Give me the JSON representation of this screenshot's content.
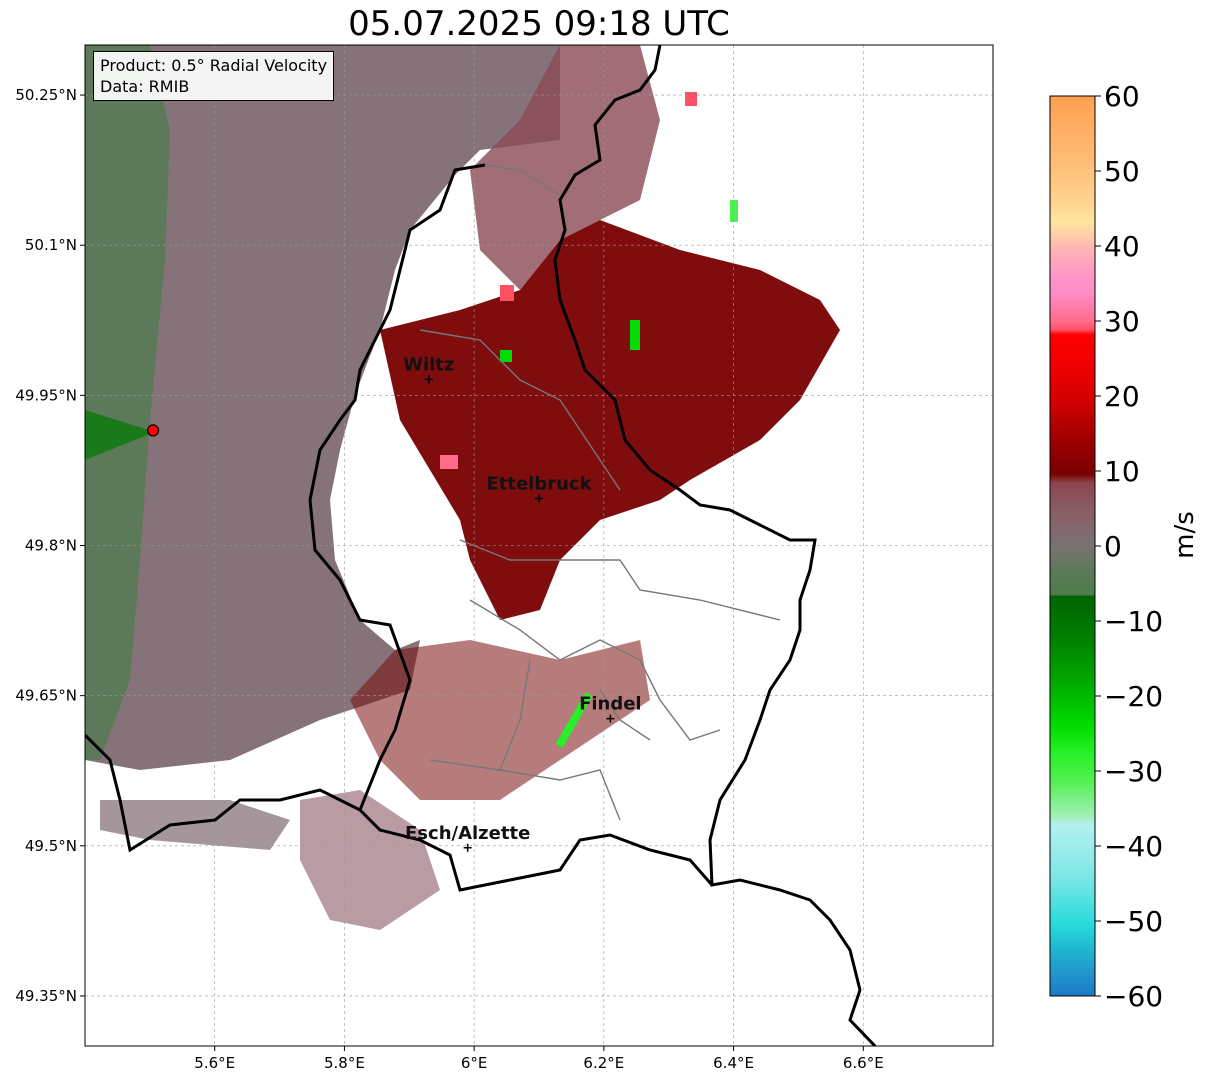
{
  "title": "05.07.2025 09:18 UTC",
  "info": {
    "product": "Product: 0.5° Radial Velocity",
    "source": "Data: RMIB"
  },
  "map": {
    "lon_range": [
      5.4,
      6.8
    ],
    "lat_range": [
      49.3,
      50.3
    ],
    "lon_ticks": [
      "5.6°E",
      "5.8°E",
      "6°E",
      "6.2°E",
      "6.4°E",
      "6.6°E"
    ],
    "lat_ticks": [
      "50.25°N",
      "50.1°N",
      "49.95°N",
      "49.8°N",
      "49.65°N",
      "49.5°N",
      "49.35°N"
    ],
    "grid": true,
    "radar_site": {
      "lon": 5.505,
      "lat": 49.915
    },
    "cities": [
      {
        "name": "Wiltz",
        "lon": 5.93,
        "lat": 49.966
      },
      {
        "name": "Ettelbruck",
        "lon": 6.1,
        "lat": 49.847
      },
      {
        "name": "Findel",
        "lon": 6.21,
        "lat": 49.627
      },
      {
        "name": "Esch/Alzette",
        "lon": 5.99,
        "lat": 49.498
      }
    ]
  },
  "colorbar": {
    "label": "m/s",
    "min": -60,
    "max": 60,
    "ticks": [
      "60",
      "50",
      "40",
      "30",
      "20",
      "10",
      "0",
      "−10",
      "−20",
      "−30",
      "−40",
      "−50",
      "−60"
    ],
    "colors": {
      "orange": "#ffa050",
      "light_orange": "#ffc882",
      "pale_yellow": "#ffe6a0",
      "pink": "#ff8cc8",
      "red_pink": "#ff5064",
      "red": "#ff0000",
      "dark_red": "#780000",
      "brown": "#8c4650",
      "gray_mauve": "#7a6a70",
      "gray_green": "#5a7a58",
      "dark_green": "#006400",
      "green": "#00dc00",
      "light_green": "#50f050",
      "pale_green": "#a0f0b4",
      "pale_cyan": "#b4f0f0",
      "cyan": "#28dcdc",
      "blue": "#1e78c8"
    }
  }
}
